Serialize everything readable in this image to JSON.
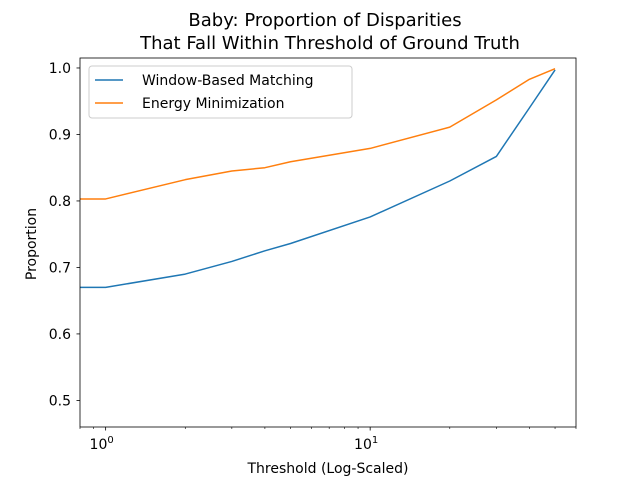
{
  "chart_data": {
    "type": "line",
    "title_lines": [
      "Baby: Proportion of Disparities",
      "That Fall Within Threshold of Ground Truth"
    ],
    "xlabel": "Threshold (Log-Scaled)",
    "ylabel": "Proportion",
    "xscale": "log",
    "xlim": [
      0.8,
      60
    ],
    "ylim": [
      0.46,
      1.015
    ],
    "x_ticks": [
      {
        "value": 1,
        "base": "10",
        "exp": "0"
      },
      {
        "value": 10,
        "base": "10",
        "exp": "1"
      }
    ],
    "y_ticks": [
      {
        "value": 0.5,
        "label": "0.5"
      },
      {
        "value": 0.6,
        "label": "0.6"
      },
      {
        "value": 0.7,
        "label": "0.7"
      },
      {
        "value": 0.8,
        "label": "0.8"
      },
      {
        "value": 0.9,
        "label": "0.9"
      },
      {
        "value": 1.0,
        "label": "1.0"
      }
    ],
    "grid": false,
    "legend_position": "upper-left",
    "series": [
      {
        "name": "Window-Based Matching",
        "color": "#1f77b4",
        "x": [
          0.5,
          1,
          2,
          3,
          4,
          5,
          10,
          20,
          30,
          40,
          50
        ],
        "y": [
          0.67,
          0.67,
          0.69,
          0.709,
          0.725,
          0.736,
          0.776,
          0.83,
          0.867,
          0.94,
          0.997
        ]
      },
      {
        "name": "Energy Minimization",
        "color": "#ff7f0e",
        "x": [
          0.5,
          1,
          2,
          3,
          4,
          5,
          10,
          20,
          30,
          40,
          50
        ],
        "y": [
          0.803,
          0.803,
          0.832,
          0.845,
          0.85,
          0.859,
          0.879,
          0.911,
          0.952,
          0.983,
          0.999
        ]
      }
    ]
  }
}
